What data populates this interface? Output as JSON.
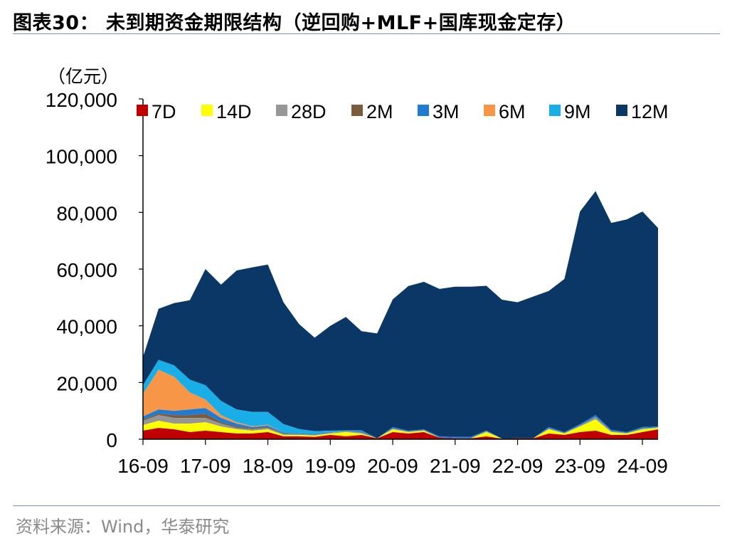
{
  "title": "图表30： 未到期资金期限结构（逆回购+MLF+国库现金定存）",
  "source": "资料来源：Wind，华泰研究",
  "colors": {
    "7D": "#c00000",
    "14D": "#ffff00",
    "28D": "#969696",
    "2M": "#7a5c3c",
    "3M": "#1f7cd4",
    "6M": "#f79646",
    "9M": "#1aaee8",
    "12M": "#0a3765"
  },
  "chart_data": {
    "type": "area",
    "stacked": true,
    "title": "",
    "xlabel": "",
    "ylabel": "（亿元）",
    "ylim": [
      0,
      120000
    ],
    "yticks": [
      0,
      20000,
      40000,
      60000,
      80000,
      100000,
      120000
    ],
    "ytick_labels": [
      "0",
      "20,000",
      "40,000",
      "60,000",
      "80,000",
      "100,000",
      "120,000"
    ],
    "xtick_labels": [
      "16-09",
      "17-09",
      "18-09",
      "19-09",
      "20-09",
      "21-09",
      "22-09",
      "23-09",
      "24-09"
    ],
    "legend_position": "top",
    "x": [
      "2016-09",
      "2016-12",
      "2017-03",
      "2017-06",
      "2017-09",
      "2017-12",
      "2018-03",
      "2018-06",
      "2018-09",
      "2018-12",
      "2019-03",
      "2019-06",
      "2019-09",
      "2019-12",
      "2020-03",
      "2020-06",
      "2020-09",
      "2020-12",
      "2021-03",
      "2021-06",
      "2021-09",
      "2021-12",
      "2022-03",
      "2022-06",
      "2022-09",
      "2022-12",
      "2023-03",
      "2023-06",
      "2023-09",
      "2023-12",
      "2024-03",
      "2024-06",
      "2024-09",
      "2024-12"
    ],
    "series": [
      {
        "name": "7D",
        "values": [
          3000,
          4000,
          3500,
          2500,
          3000,
          2500,
          2000,
          2000,
          2500,
          1000,
          1000,
          800,
          1500,
          1000,
          1500,
          300,
          2500,
          2000,
          2500,
          500,
          300,
          300,
          1000,
          200,
          300,
          300,
          2000,
          1500,
          2500,
          3000,
          1500,
          1500,
          2500,
          3500
        ]
      },
      {
        "name": "14D",
        "values": [
          2000,
          2500,
          2000,
          3000,
          3000,
          2000,
          1500,
          1000,
          1000,
          500,
          500,
          500,
          500,
          1500,
          500,
          0,
          1000,
          500,
          500,
          0,
          0,
          0,
          1500,
          0,
          0,
          0,
          1500,
          500,
          2000,
          4000,
          1000,
          500,
          1000,
          500
        ]
      },
      {
        "name": "28D",
        "values": [
          1500,
          2000,
          2000,
          2000,
          1500,
          1000,
          500,
          500,
          500,
          300,
          300,
          200,
          300,
          300,
          300,
          0,
          300,
          200,
          200,
          0,
          0,
          0,
          300,
          0,
          0,
          0,
          300,
          200,
          300,
          800,
          300,
          200,
          300,
          200
        ]
      },
      {
        "name": "2M",
        "values": [
          500,
          500,
          1000,
          1000,
          1500,
          500,
          500,
          300,
          300,
          200,
          0,
          0,
          0,
          0,
          0,
          0,
          0,
          0,
          0,
          0,
          0,
          0,
          0,
          0,
          0,
          0,
          0,
          0,
          0,
          0,
          0,
          0,
          0,
          0
        ]
      },
      {
        "name": "3M",
        "values": [
          1000,
          1500,
          1500,
          2000,
          2000,
          1500,
          1000,
          500,
          500,
          300,
          300,
          300,
          200,
          0,
          500,
          0,
          500,
          300,
          300,
          500,
          500,
          500,
          300,
          0,
          0,
          0,
          500,
          300,
          500,
          700,
          500,
          300,
          500,
          300
        ]
      },
      {
        "name": "6M",
        "values": [
          8000,
          14000,
          12000,
          6000,
          3000,
          1000,
          500,
          300,
          300,
          0,
          0,
          0,
          0,
          0,
          0,
          0,
          0,
          0,
          0,
          0,
          0,
          0,
          0,
          0,
          0,
          0,
          0,
          0,
          0,
          0,
          0,
          0,
          0,
          0
        ]
      },
      {
        "name": "9M",
        "values": [
          3000,
          3500,
          4000,
          4500,
          5000,
          5000,
          4500,
          5000,
          4500,
          3000,
          1500,
          1000,
          500,
          300,
          300,
          0,
          0,
          0,
          0,
          0,
          0,
          0,
          0,
          0,
          0,
          0,
          0,
          0,
          0,
          0,
          0,
          0,
          0,
          0
        ]
      },
      {
        "name": "12M",
        "values": [
          10000,
          18000,
          22000,
          28000,
          41000,
          41000,
          49000,
          51000,
          52000,
          43000,
          37000,
          33000,
          37000,
          40000,
          35000,
          37000,
          45000,
          51000,
          52000,
          52000,
          53000,
          53000,
          51000,
          49000,
          48000,
          50000,
          48000,
          54000,
          75000,
          79000,
          73000,
          75000,
          76000,
          70000
        ]
      }
    ]
  }
}
